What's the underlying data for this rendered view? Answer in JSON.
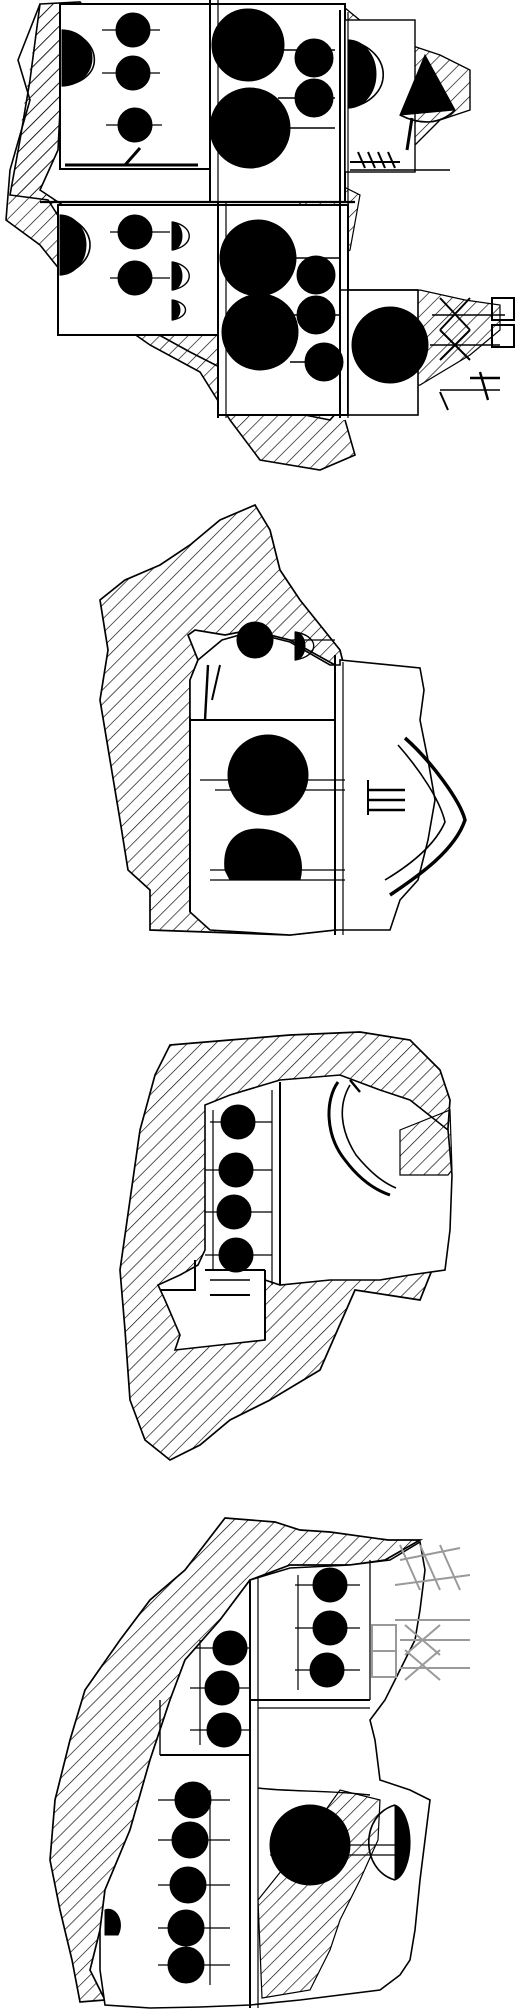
{
  "figure": {
    "description_visible_text": "",
    "colors": {
      "ink": "#000000",
      "paper": "#ffffff",
      "hatch": "#000000",
      "faint_sign": "#9a9a9a"
    },
    "fragments": [
      {
        "id": "fragment-1",
        "label": ""
      },
      {
        "id": "fragment-2",
        "label": ""
      },
      {
        "id": "fragment-3",
        "label": ""
      },
      {
        "id": "fragment-4",
        "label": ""
      }
    ]
  }
}
